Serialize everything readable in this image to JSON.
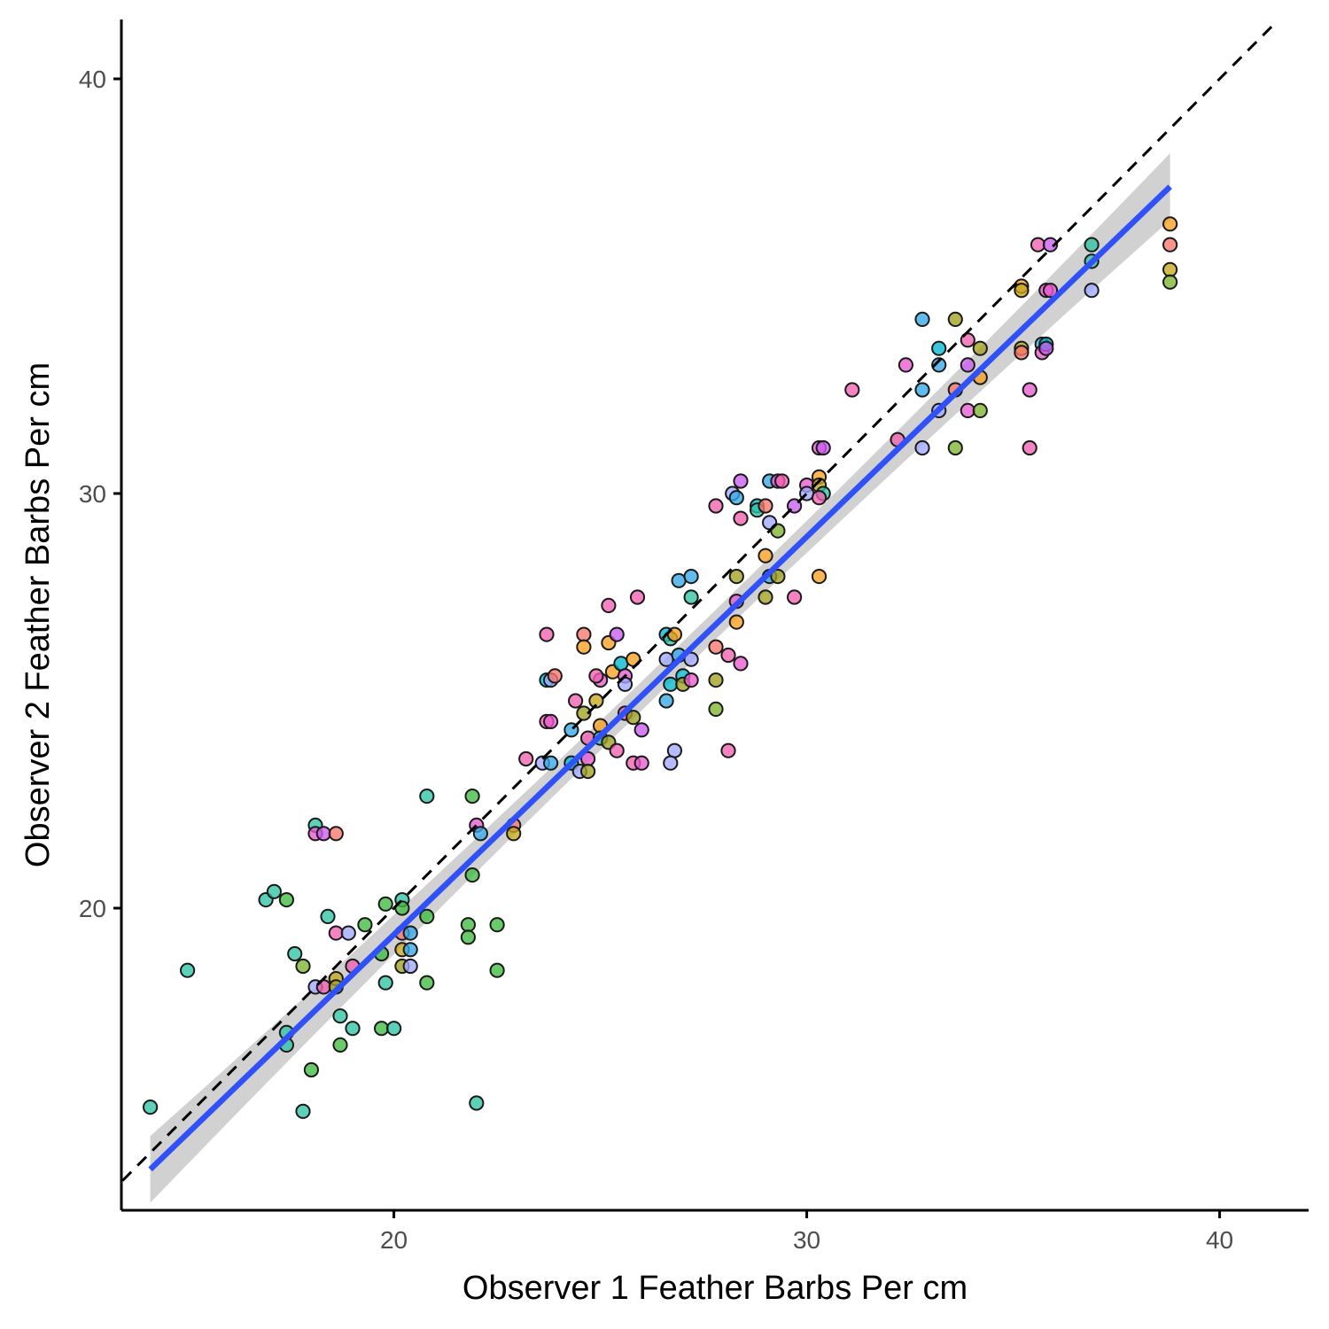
{
  "chart_data": {
    "type": "scatter",
    "title": "",
    "xlabel": "Observer 1 Feather Barbs Per cm",
    "ylabel": "Observer 2 Feather Barbs Per cm",
    "xlim": [
      12.7,
      41.4
    ],
    "ylim": [
      12.7,
      41.4
    ],
    "xticks": [
      20,
      30,
      40
    ],
    "yticks": [
      20,
      30,
      40
    ],
    "grid": false,
    "legend": "none",
    "reference_line": {
      "slope": 1,
      "intercept": 0,
      "style": "dashed",
      "color": "#000000"
    },
    "fit_line": {
      "x": [
        14.1,
        38.8
      ],
      "y": [
        13.7,
        37.4
      ],
      "color": "#3050f8",
      "band_halfwidth": 0.35,
      "band_color": "#cccccc"
    },
    "points": [
      {
        "x": 14.1,
        "y": 15.2,
        "color": "#2ec4a4"
      },
      {
        "x": 15.0,
        "y": 18.5,
        "color": "#2ec4a4"
      },
      {
        "x": 16.9,
        "y": 20.2,
        "color": "#2ec4a4"
      },
      {
        "x": 17.1,
        "y": 20.4,
        "color": "#2ec4a4"
      },
      {
        "x": 17.4,
        "y": 20.2,
        "color": "#3dbb3d"
      },
      {
        "x": 17.6,
        "y": 18.9,
        "color": "#2ec4a4"
      },
      {
        "x": 17.8,
        "y": 18.6,
        "color": "#7eb52e"
      },
      {
        "x": 18.1,
        "y": 22.0,
        "color": "#2ec4a4"
      },
      {
        "x": 18.1,
        "y": 21.8,
        "color": "#e85ad0"
      },
      {
        "x": 18.3,
        "y": 21.8,
        "color": "#c95cf0"
      },
      {
        "x": 18.6,
        "y": 21.8,
        "color": "#f8766d"
      },
      {
        "x": 18.4,
        "y": 19.8,
        "color": "#2ec4a4"
      },
      {
        "x": 18.6,
        "y": 19.4,
        "color": "#f060b0"
      },
      {
        "x": 18.9,
        "y": 19.4,
        "color": "#a0a8ff"
      },
      {
        "x": 19.0,
        "y": 18.6,
        "color": "#f060b0"
      },
      {
        "x": 18.1,
        "y": 18.1,
        "color": "#a0a8ff"
      },
      {
        "x": 18.3,
        "y": 18.1,
        "color": "#f060b0"
      },
      {
        "x": 18.6,
        "y": 18.3,
        "color": "#c7a81e"
      },
      {
        "x": 18.6,
        "y": 18.1,
        "color": "#a0a020"
      },
      {
        "x": 17.4,
        "y": 17.0,
        "color": "#2ec4a4"
      },
      {
        "x": 17.4,
        "y": 16.7,
        "color": "#2ec4a4"
      },
      {
        "x": 18.0,
        "y": 16.1,
        "color": "#3dbb3d"
      },
      {
        "x": 18.7,
        "y": 17.4,
        "color": "#2ec4a4"
      },
      {
        "x": 19.0,
        "y": 17.1,
        "color": "#2ec4a4"
      },
      {
        "x": 18.7,
        "y": 16.7,
        "color": "#3dbb3d"
      },
      {
        "x": 17.8,
        "y": 15.1,
        "color": "#2ec4a4"
      },
      {
        "x": 19.3,
        "y": 19.6,
        "color": "#3dbb3d"
      },
      {
        "x": 19.7,
        "y": 18.9,
        "color": "#3dbb3d"
      },
      {
        "x": 19.8,
        "y": 18.2,
        "color": "#2ec4a4"
      },
      {
        "x": 19.7,
        "y": 17.1,
        "color": "#3dbb3d"
      },
      {
        "x": 20.0,
        "y": 17.1,
        "color": "#2ec4a4"
      },
      {
        "x": 19.8,
        "y": 20.1,
        "color": "#3dbb3d"
      },
      {
        "x": 20.2,
        "y": 20.2,
        "color": "#2ec4a4"
      },
      {
        "x": 20.2,
        "y": 20.0,
        "color": "#3dbb3d"
      },
      {
        "x": 20.2,
        "y": 19.4,
        "color": "#f8766d"
      },
      {
        "x": 20.4,
        "y": 19.4,
        "color": "#35a9e8"
      },
      {
        "x": 20.2,
        "y": 19.0,
        "color": "#c7a81e"
      },
      {
        "x": 20.4,
        "y": 19.0,
        "color": "#35a9e8"
      },
      {
        "x": 20.2,
        "y": 18.6,
        "color": "#a0a020"
      },
      {
        "x": 20.4,
        "y": 18.6,
        "color": "#a0a8ff"
      },
      {
        "x": 20.8,
        "y": 22.7,
        "color": "#2ec4a4"
      },
      {
        "x": 20.8,
        "y": 19.8,
        "color": "#3dbb3d"
      },
      {
        "x": 20.8,
        "y": 18.2,
        "color": "#3dbb3d"
      },
      {
        "x": 21.8,
        "y": 19.6,
        "color": "#3dbb3d"
      },
      {
        "x": 21.8,
        "y": 19.3,
        "color": "#3dbb3d"
      },
      {
        "x": 21.9,
        "y": 20.8,
        "color": "#3dbb3d"
      },
      {
        "x": 21.9,
        "y": 22.7,
        "color": "#3dbb3d"
      },
      {
        "x": 22.0,
        "y": 22.0,
        "color": "#e85ad0"
      },
      {
        "x": 22.1,
        "y": 21.8,
        "color": "#35a9e8"
      },
      {
        "x": 22.5,
        "y": 19.6,
        "color": "#3dbb3d"
      },
      {
        "x": 22.5,
        "y": 18.5,
        "color": "#3dbb3d"
      },
      {
        "x": 22.0,
        "y": 15.3,
        "color": "#2ec4a4"
      },
      {
        "x": 22.9,
        "y": 22.0,
        "color": "#f8766d"
      },
      {
        "x": 22.9,
        "y": 21.8,
        "color": "#c7a81e"
      },
      {
        "x": 23.2,
        "y": 23.6,
        "color": "#f060b0"
      },
      {
        "x": 23.6,
        "y": 23.5,
        "color": "#a0a8ff"
      },
      {
        "x": 23.8,
        "y": 23.5,
        "color": "#35a9e8"
      },
      {
        "x": 23.7,
        "y": 26.6,
        "color": "#f060b0"
      },
      {
        "x": 23.7,
        "y": 25.5,
        "color": "#00b8d0"
      },
      {
        "x": 23.8,
        "y": 25.5,
        "color": "#a0a8ff"
      },
      {
        "x": 23.9,
        "y": 25.6,
        "color": "#f8766d"
      },
      {
        "x": 23.7,
        "y": 24.5,
        "color": "#f060b0"
      },
      {
        "x": 23.8,
        "y": 24.5,
        "color": "#e85ad0"
      },
      {
        "x": 24.3,
        "y": 24.3,
        "color": "#35a9e8"
      },
      {
        "x": 24.4,
        "y": 25.0,
        "color": "#f060b0"
      },
      {
        "x": 24.3,
        "y": 23.5,
        "color": "#00b8d0"
      },
      {
        "x": 24.5,
        "y": 23.3,
        "color": "#a0a8ff"
      },
      {
        "x": 24.6,
        "y": 24.7,
        "color": "#a0a020"
      },
      {
        "x": 24.7,
        "y": 24.1,
        "color": "#f060b0"
      },
      {
        "x": 24.6,
        "y": 26.6,
        "color": "#f8766d"
      },
      {
        "x": 24.6,
        "y": 26.3,
        "color": "#f8a020"
      },
      {
        "x": 24.7,
        "y": 23.6,
        "color": "#e85ad0"
      },
      {
        "x": 24.7,
        "y": 23.3,
        "color": "#a0a020"
      },
      {
        "x": 24.9,
        "y": 25.0,
        "color": "#c7a81e"
      },
      {
        "x": 25.0,
        "y": 25.5,
        "color": "#e85ad0"
      },
      {
        "x": 24.9,
        "y": 25.6,
        "color": "#f060b0"
      },
      {
        "x": 25.0,
        "y": 24.4,
        "color": "#f8a020"
      },
      {
        "x": 25.0,
        "y": 24.1,
        "color": "#2ec4a4"
      },
      {
        "x": 25.2,
        "y": 24.0,
        "color": "#a0a020"
      },
      {
        "x": 25.2,
        "y": 26.4,
        "color": "#f8a020"
      },
      {
        "x": 25.3,
        "y": 25.7,
        "color": "#f8a020"
      },
      {
        "x": 25.4,
        "y": 23.8,
        "color": "#f060b0"
      },
      {
        "x": 25.5,
        "y": 25.9,
        "color": "#00b8d0"
      },
      {
        "x": 25.6,
        "y": 25.6,
        "color": "#e85ad0"
      },
      {
        "x": 25.4,
        "y": 26.6,
        "color": "#c95cf0"
      },
      {
        "x": 25.2,
        "y": 27.3,
        "color": "#f060b0"
      },
      {
        "x": 25.6,
        "y": 24.7,
        "color": "#f060b0"
      },
      {
        "x": 25.6,
        "y": 25.4,
        "color": "#a0a8ff"
      },
      {
        "x": 25.8,
        "y": 26.0,
        "color": "#f8a020"
      },
      {
        "x": 25.8,
        "y": 24.6,
        "color": "#a0a020"
      },
      {
        "x": 25.8,
        "y": 23.5,
        "color": "#f060b0"
      },
      {
        "x": 25.9,
        "y": 27.5,
        "color": "#f060b0"
      },
      {
        "x": 26.0,
        "y": 24.3,
        "color": "#c95cf0"
      },
      {
        "x": 26.0,
        "y": 23.5,
        "color": "#e85ad0"
      },
      {
        "x": 26.6,
        "y": 26.6,
        "color": "#00b8d0"
      },
      {
        "x": 26.6,
        "y": 26.0,
        "color": "#a0a8ff"
      },
      {
        "x": 26.7,
        "y": 25.4,
        "color": "#00b8d0"
      },
      {
        "x": 26.7,
        "y": 26.5,
        "color": "#2ec4a4"
      },
      {
        "x": 26.9,
        "y": 26.1,
        "color": "#35a9e8"
      },
      {
        "x": 26.8,
        "y": 26.6,
        "color": "#f8a020"
      },
      {
        "x": 27.0,
        "y": 25.6,
        "color": "#00b8d0"
      },
      {
        "x": 27.0,
        "y": 25.4,
        "color": "#a0a020"
      },
      {
        "x": 27.2,
        "y": 26.0,
        "color": "#a0a8ff"
      },
      {
        "x": 27.2,
        "y": 25.5,
        "color": "#e85ad0"
      },
      {
        "x": 26.6,
        "y": 25.0,
        "color": "#35a9e8"
      },
      {
        "x": 26.9,
        "y": 27.9,
        "color": "#35a9e8"
      },
      {
        "x": 27.2,
        "y": 28.0,
        "color": "#35a9e8"
      },
      {
        "x": 27.2,
        "y": 27.5,
        "color": "#2ec4a4"
      },
      {
        "x": 26.8,
        "y": 23.8,
        "color": "#a0a8ff"
      },
      {
        "x": 26.7,
        "y": 23.5,
        "color": "#a0a8ff"
      },
      {
        "x": 27.8,
        "y": 26.3,
        "color": "#f8766d"
      },
      {
        "x": 27.8,
        "y": 25.5,
        "color": "#a0a020"
      },
      {
        "x": 27.8,
        "y": 24.8,
        "color": "#7eb52e"
      },
      {
        "x": 27.8,
        "y": 29.7,
        "color": "#f060b0"
      },
      {
        "x": 28.1,
        "y": 23.8,
        "color": "#f060b0"
      },
      {
        "x": 28.1,
        "y": 26.1,
        "color": "#f060b0"
      },
      {
        "x": 28.2,
        "y": 30.0,
        "color": "#a0a8ff"
      },
      {
        "x": 28.3,
        "y": 29.9,
        "color": "#35a9e8"
      },
      {
        "x": 28.4,
        "y": 30.3,
        "color": "#c95cf0"
      },
      {
        "x": 28.4,
        "y": 29.4,
        "color": "#f060b0"
      },
      {
        "x": 28.3,
        "y": 28.0,
        "color": "#a0a020"
      },
      {
        "x": 28.3,
        "y": 27.4,
        "color": "#e85ad0"
      },
      {
        "x": 28.3,
        "y": 26.9,
        "color": "#f8a020"
      },
      {
        "x": 28.4,
        "y": 25.9,
        "color": "#e85ad0"
      },
      {
        "x": 28.8,
        "y": 29.7,
        "color": "#00b8d0"
      },
      {
        "x": 28.8,
        "y": 29.6,
        "color": "#2ec4a4"
      },
      {
        "x": 29.0,
        "y": 29.7,
        "color": "#f8766d"
      },
      {
        "x": 29.0,
        "y": 28.5,
        "color": "#f8a020"
      },
      {
        "x": 29.0,
        "y": 27.5,
        "color": "#a0a020"
      },
      {
        "x": 29.1,
        "y": 30.3,
        "color": "#35a9e8"
      },
      {
        "x": 29.1,
        "y": 28.0,
        "color": "#35a9e8"
      },
      {
        "x": 29.1,
        "y": 29.3,
        "color": "#a0a8ff"
      },
      {
        "x": 29.3,
        "y": 30.3,
        "color": "#e85ad0"
      },
      {
        "x": 29.3,
        "y": 29.1,
        "color": "#7eb52e"
      },
      {
        "x": 29.3,
        "y": 28.0,
        "color": "#a0a020"
      },
      {
        "x": 29.4,
        "y": 30.3,
        "color": "#f060b0"
      },
      {
        "x": 29.7,
        "y": 29.7,
        "color": "#c95cf0"
      },
      {
        "x": 29.7,
        "y": 27.5,
        "color": "#f060b0"
      },
      {
        "x": 30.0,
        "y": 30.2,
        "color": "#e85ad0"
      },
      {
        "x": 30.0,
        "y": 30.0,
        "color": "#a0a8ff"
      },
      {
        "x": 30.3,
        "y": 30.4,
        "color": "#f8a020"
      },
      {
        "x": 30.3,
        "y": 30.2,
        "color": "#c7a81e"
      },
      {
        "x": 30.4,
        "y": 30.0,
        "color": "#2ec4a4"
      },
      {
        "x": 30.3,
        "y": 29.9,
        "color": "#f060b0"
      },
      {
        "x": 30.3,
        "y": 31.1,
        "color": "#e85ad0"
      },
      {
        "x": 30.4,
        "y": 31.1,
        "color": "#c95cf0"
      },
      {
        "x": 30.3,
        "y": 28.0,
        "color": "#f8a020"
      },
      {
        "x": 31.1,
        "y": 32.5,
        "color": "#f060b0"
      },
      {
        "x": 32.2,
        "y": 31.3,
        "color": "#f060b0"
      },
      {
        "x": 32.4,
        "y": 33.1,
        "color": "#e85ad0"
      },
      {
        "x": 32.8,
        "y": 32.5,
        "color": "#35a9e8"
      },
      {
        "x": 32.8,
        "y": 34.2,
        "color": "#35a9e8"
      },
      {
        "x": 32.8,
        "y": 31.1,
        "color": "#a0a8ff"
      },
      {
        "x": 33.2,
        "y": 33.5,
        "color": "#00b8d0"
      },
      {
        "x": 33.2,
        "y": 33.1,
        "color": "#35a9e8"
      },
      {
        "x": 33.2,
        "y": 32.0,
        "color": "#a0a8ff"
      },
      {
        "x": 33.6,
        "y": 34.2,
        "color": "#a0a020"
      },
      {
        "x": 33.6,
        "y": 31.1,
        "color": "#7eb52e"
      },
      {
        "x": 33.6,
        "y": 32.5,
        "color": "#f8766d"
      },
      {
        "x": 33.9,
        "y": 33.7,
        "color": "#f060b0"
      },
      {
        "x": 33.9,
        "y": 32.0,
        "color": "#e85ad0"
      },
      {
        "x": 33.9,
        "y": 33.1,
        "color": "#c95cf0"
      },
      {
        "x": 34.2,
        "y": 33.5,
        "color": "#a0a020"
      },
      {
        "x": 34.2,
        "y": 32.8,
        "color": "#f8a020"
      },
      {
        "x": 34.2,
        "y": 32.0,
        "color": "#7eb52e"
      },
      {
        "x": 35.2,
        "y": 35.0,
        "color": "#f8a020"
      },
      {
        "x": 35.2,
        "y": 34.9,
        "color": "#c7a81e"
      },
      {
        "x": 35.2,
        "y": 33.5,
        "color": "#c7a81e"
      },
      {
        "x": 35.2,
        "y": 33.4,
        "color": "#f8766d"
      },
      {
        "x": 35.4,
        "y": 32.5,
        "color": "#e85ad0"
      },
      {
        "x": 35.4,
        "y": 31.1,
        "color": "#f060b0"
      },
      {
        "x": 35.6,
        "y": 36.0,
        "color": "#f060b0"
      },
      {
        "x": 35.7,
        "y": 33.6,
        "color": "#35a9e8"
      },
      {
        "x": 35.7,
        "y": 33.4,
        "color": "#e85ad0"
      },
      {
        "x": 35.8,
        "y": 33.6,
        "color": "#00b8d0"
      },
      {
        "x": 35.8,
        "y": 34.9,
        "color": "#e85ad0"
      },
      {
        "x": 35.8,
        "y": 33.5,
        "color": "#c95cf0"
      },
      {
        "x": 35.9,
        "y": 36.0,
        "color": "#c95cf0"
      },
      {
        "x": 35.9,
        "y": 34.9,
        "color": "#e85ad0"
      },
      {
        "x": 36.9,
        "y": 36.0,
        "color": "#2ec4a4"
      },
      {
        "x": 36.9,
        "y": 35.6,
        "color": "#2ec4a4"
      },
      {
        "x": 36.9,
        "y": 34.9,
        "color": "#a0a8ff"
      },
      {
        "x": 38.8,
        "y": 36.5,
        "color": "#f8a020"
      },
      {
        "x": 38.8,
        "y": 36.0,
        "color": "#f8766d"
      },
      {
        "x": 38.8,
        "y": 35.4,
        "color": "#c7a81e"
      },
      {
        "x": 38.8,
        "y": 35.1,
        "color": "#7eb52e"
      }
    ]
  }
}
